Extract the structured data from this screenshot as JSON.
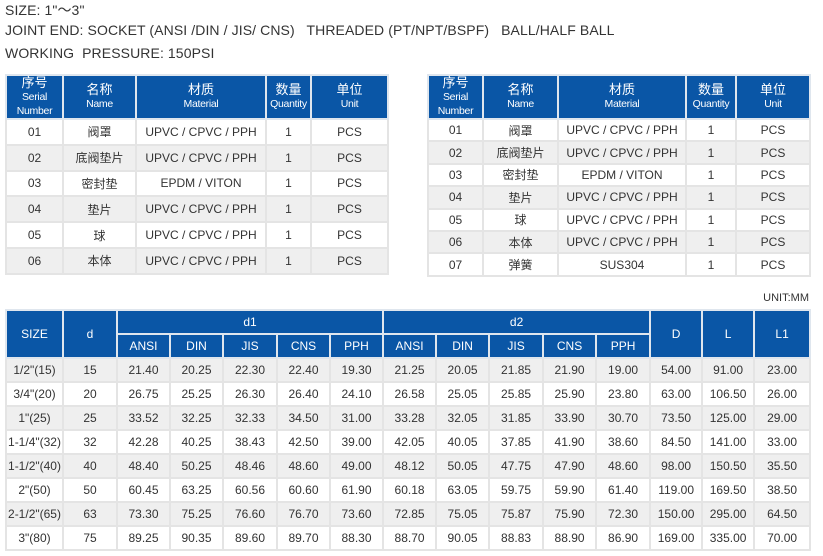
{
  "specs": {
    "size": "SIZE: 1\"～3\"",
    "joint_end": "JOINT END: SOCKET (ANSI /DIN / JIS/ CNS)   THREADED (PT/NPT/BSPF)   BALL/HALF BALL",
    "pressure": "WORKING  PRESSURE: 150PSI"
  },
  "parts_header": [
    {
      "cn": "序号",
      "en": "Serial Number"
    },
    {
      "cn": "名称",
      "en": "Name"
    },
    {
      "cn": "材质",
      "en": "Material"
    },
    {
      "cn": "数量",
      "en": "Quantity"
    },
    {
      "cn": "单位",
      "en": "Unit"
    }
  ],
  "parts_left": [
    [
      "01",
      "阀罩",
      "UPVC / CPVC / PPH",
      "1",
      "PCS"
    ],
    [
      "02",
      "底阀垫片",
      "UPVC / CPVC / PPH",
      "1",
      "PCS"
    ],
    [
      "03",
      "密封垫",
      "EPDM / VITON",
      "1",
      "PCS"
    ],
    [
      "04",
      "垫片",
      "UPVC / CPVC / PPH",
      "1",
      "PCS"
    ],
    [
      "05",
      "球",
      "UPVC / CPVC / PPH",
      "1",
      "PCS"
    ],
    [
      "06",
      "本体",
      "UPVC / CPVC / PPH",
      "1",
      "PCS"
    ]
  ],
  "parts_right": [
    [
      "01",
      "阀罩",
      "UPVC / CPVC / PPH",
      "1",
      "PCS"
    ],
    [
      "02",
      "底阀垫片",
      "UPVC / CPVC / PPH",
      "1",
      "PCS"
    ],
    [
      "03",
      "密封垫",
      "EPDM / VITON",
      "1",
      "PCS"
    ],
    [
      "04",
      "垫片",
      "UPVC / CPVC / PPH",
      "1",
      "PCS"
    ],
    [
      "05",
      "球",
      "UPVC / CPVC / PPH",
      "1",
      "PCS"
    ],
    [
      "06",
      "本体",
      "UPVC / CPVC / PPH",
      "1",
      "PCS"
    ],
    [
      "07",
      "弹簧",
      "SUS304",
      "1",
      "PCS"
    ]
  ],
  "dims": {
    "unit": "UNIT:MM",
    "header": {
      "size": "SIZE",
      "d": "d",
      "d1": "d1",
      "d2": "d2",
      "D": "D",
      "L": "L",
      "L1": "L1",
      "sub": [
        "ANSI",
        "DIN",
        "JIS",
        "CNS",
        "PPH"
      ]
    },
    "rows": [
      [
        "1/2\"(15)",
        "15",
        "21.40",
        "20.25",
        "22.30",
        "22.40",
        "19.30",
        "21.25",
        "20.05",
        "21.85",
        "21.90",
        "19.00",
        "54.00",
        "91.00",
        "23.00"
      ],
      [
        "3/4\"(20)",
        "20",
        "26.75",
        "25.25",
        "26.30",
        "26.40",
        "24.10",
        "26.58",
        "25.05",
        "25.85",
        "25.90",
        "23.80",
        "63.00",
        "106.50",
        "26.00"
      ],
      [
        "1\"(25)",
        "25",
        "33.52",
        "32.25",
        "32.33",
        "34.50",
        "31.00",
        "33.28",
        "32.05",
        "31.85",
        "33.90",
        "30.70",
        "73.50",
        "125.00",
        "29.00"
      ],
      [
        "1-1/4\"(32)",
        "32",
        "42.28",
        "40.25",
        "38.43",
        "42.50",
        "39.00",
        "42.05",
        "40.05",
        "37.85",
        "41.90",
        "38.60",
        "84.50",
        "141.00",
        "33.00"
      ],
      [
        "1-1/2\"(40)",
        "40",
        "48.40",
        "50.25",
        "48.46",
        "48.60",
        "49.00",
        "48.12",
        "50.05",
        "47.75",
        "47.90",
        "48.60",
        "98.00",
        "150.50",
        "35.50"
      ],
      [
        "2\"(50)",
        "50",
        "60.45",
        "63.25",
        "60.56",
        "60.60",
        "61.90",
        "60.18",
        "63.05",
        "59.75",
        "59.90",
        "61.40",
        "119.00",
        "169.50",
        "38.50"
      ],
      [
        "2-1/2\"(65)",
        "63",
        "73.30",
        "75.25",
        "76.60",
        "76.70",
        "73.60",
        "72.85",
        "75.05",
        "75.87",
        "75.90",
        "72.30",
        "150.00",
        "295.00",
        "64.50"
      ],
      [
        "3\"(80)",
        "75",
        "89.25",
        "90.35",
        "89.60",
        "89.70",
        "88.30",
        "88.70",
        "90.05",
        "88.83",
        "88.90",
        "86.90",
        "169.00",
        "335.00",
        "70.00"
      ]
    ]
  }
}
